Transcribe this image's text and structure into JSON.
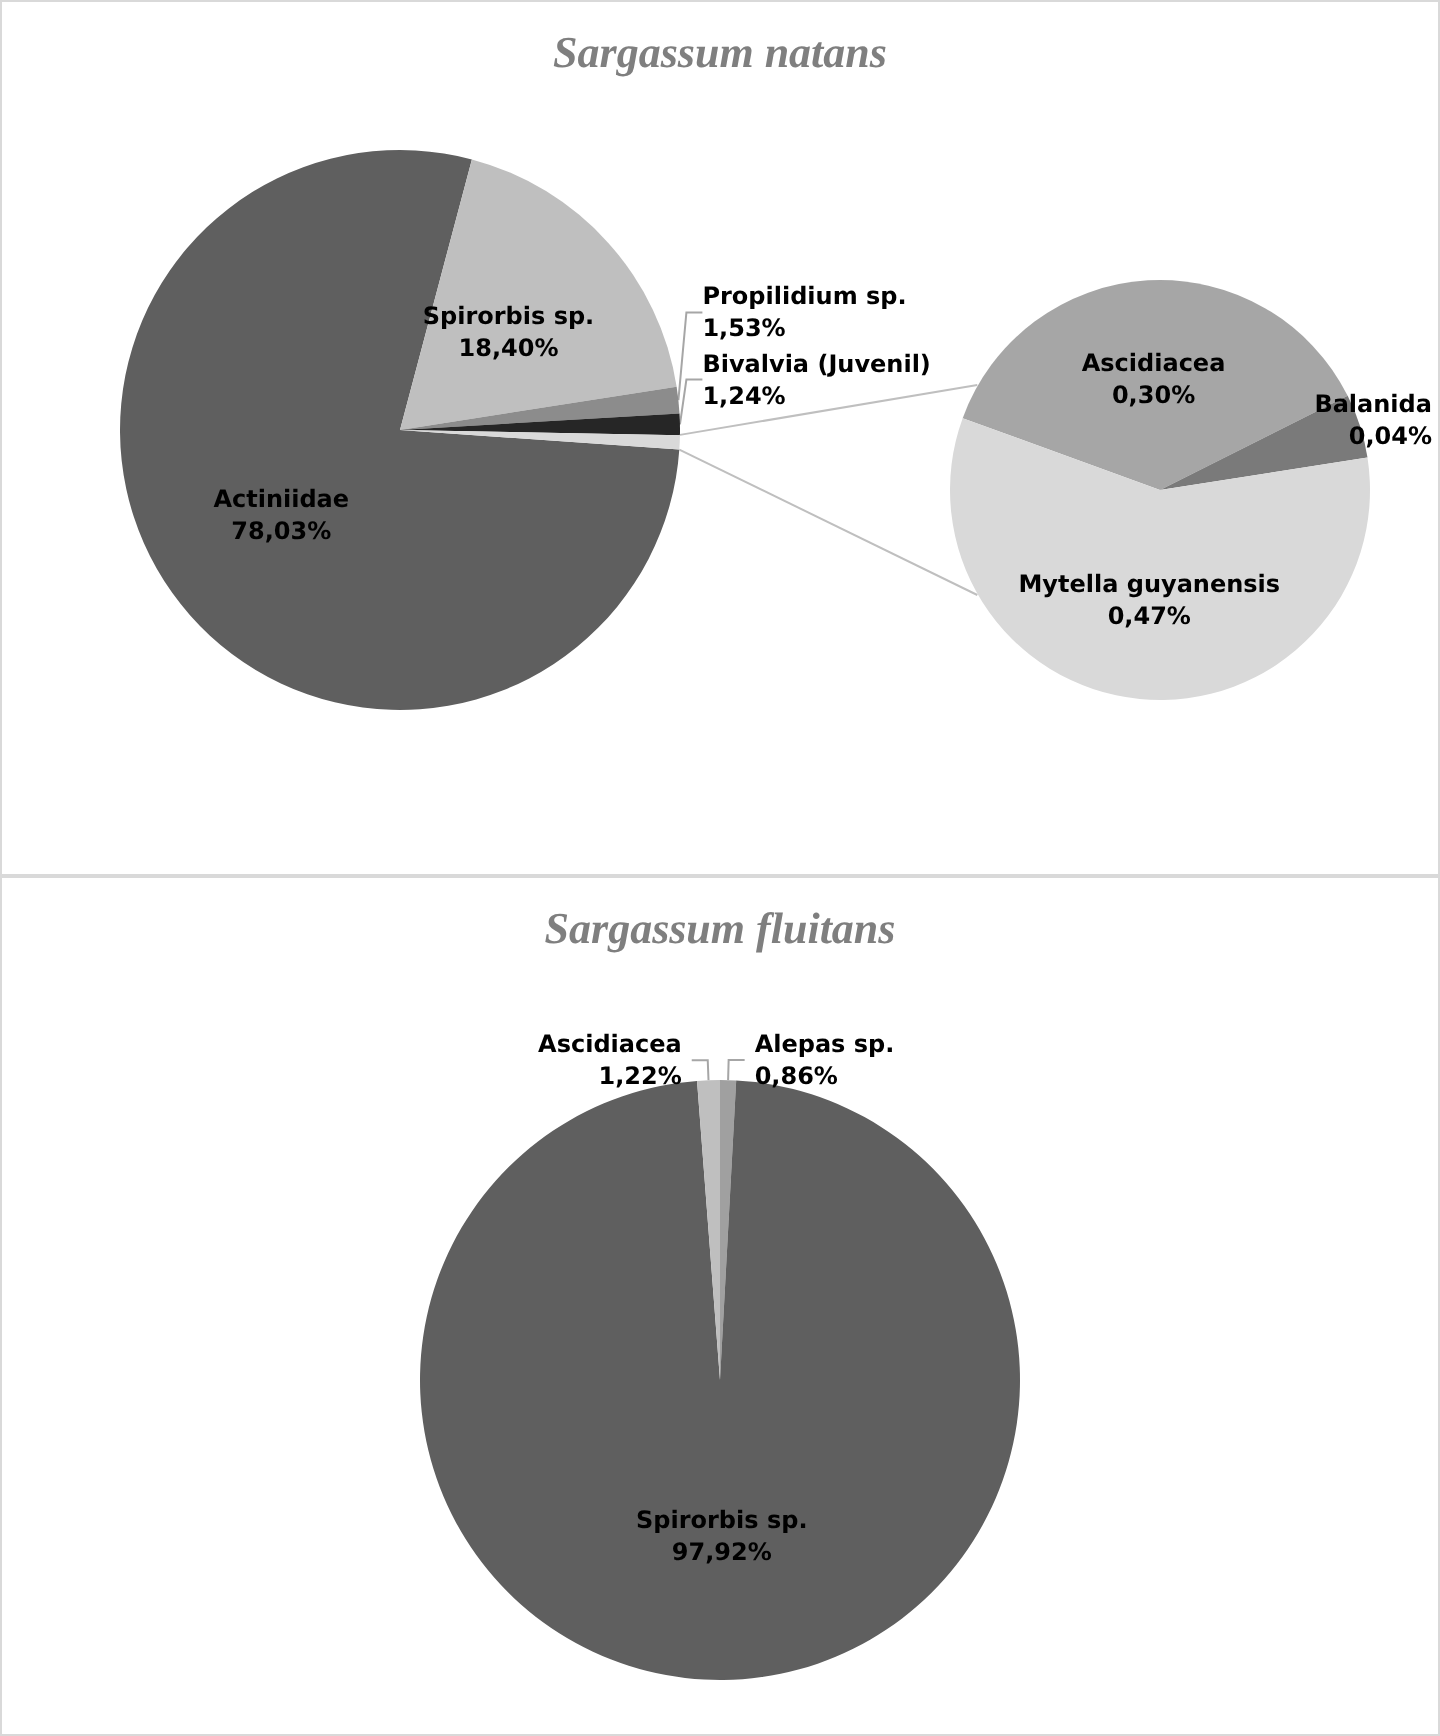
{
  "chart_data": [
    {
      "type": "pie",
      "title": "Sargassum natans",
      "categories": [
        "Actiniidae",
        "Spirorbis sp.",
        "Propilidium sp.",
        "Bivalvia (Juvenil)",
        null
      ],
      "values": [
        78.03,
        18.4,
        1.53,
        1.24,
        0.81
      ],
      "value_labels": [
        "78,03%",
        "18,40%",
        "1,53%",
        "1,24%",
        null
      ],
      "colors": [
        "#5f5f5f",
        "#bfbfbf",
        "#8c8c8c",
        "#262626",
        "#d9d9d9"
      ]
    },
    {
      "type": "pie",
      "categories": [
        "Ascidiacea",
        "Balanida",
        "Mytella guyanensis"
      ],
      "values": [
        0.3,
        0.04,
        0.47
      ],
      "value_labels": [
        "0,30%",
        "0,04%",
        "0,47%"
      ],
      "colors": [
        "#a6a6a6",
        "#7a7a7a",
        "#d9d9d9"
      ]
    },
    {
      "type": "pie",
      "title": "Sargassum fluitans",
      "categories": [
        "Alepas sp.",
        "Spirorbis sp.",
        "Ascidiacea"
      ],
      "values": [
        0.86,
        97.92,
        1.22
      ],
      "value_labels": [
        "0,86%",
        "97,92%",
        "1,22%"
      ],
      "colors": [
        "#a0a0a0",
        "#5f5f5f",
        "#bfbfbf"
      ]
    }
  ]
}
